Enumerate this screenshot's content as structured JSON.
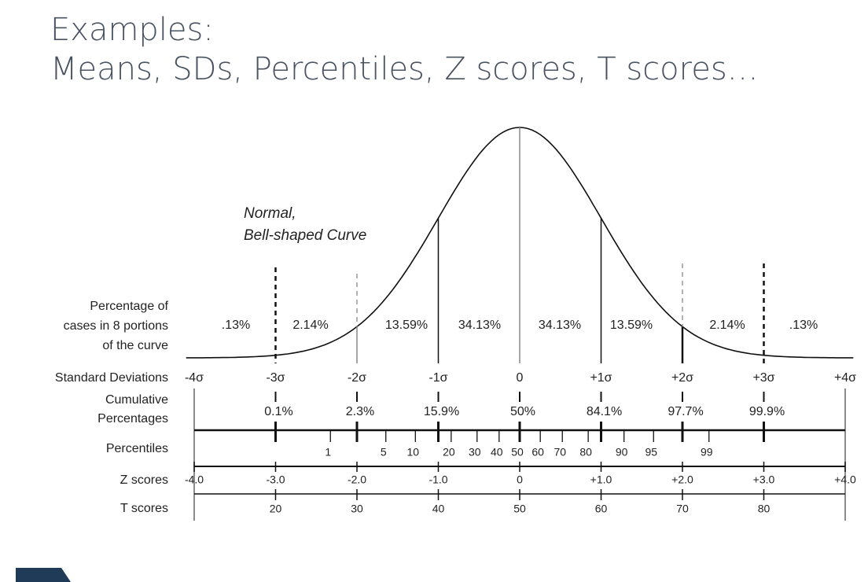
{
  "title": {
    "line1": "Examples:",
    "line2": "Means, SDs, Percentiles, Z scores, T scores…"
  },
  "annotation": [
    "Normal,",
    "Bell-shaped Curve"
  ],
  "rows": {
    "portions": {
      "label": [
        "Percentage of",
        "cases in 8 portions",
        "of the curve"
      ],
      "values": [
        ".13%",
        "2.14%",
        "13.59%",
        "34.13%",
        "34.13%",
        "13.59%",
        "2.14%",
        ".13%"
      ]
    },
    "standard_deviations": {
      "label": "Standard Deviations",
      "values": [
        "-4σ",
        "-3σ",
        "-2σ",
        "-1σ",
        "0",
        "+1σ",
        "+2σ",
        "+3σ",
        "+4σ"
      ]
    },
    "cumulative": {
      "label": [
        "Cumulative",
        "Percentages"
      ],
      "values": [
        "0.1%",
        "2.3%",
        "15.9%",
        "50%",
        "84.1%",
        "97.7%",
        "99.9%"
      ]
    },
    "percentiles": {
      "label": "Percentiles",
      "values": [
        "1",
        "5",
        "10",
        "20",
        "30",
        "40",
        "50",
        "60",
        "70",
        "80",
        "90",
        "95",
        "99"
      ]
    },
    "z_scores": {
      "label": "Z scores",
      "values": [
        "-4.0",
        "-3.0",
        "-2.0",
        "-1.0",
        "0",
        "+1.0",
        "+2.0",
        "+3.0",
        "+4.0"
      ]
    },
    "t_scores": {
      "label": "T scores",
      "values": [
        "20",
        "30",
        "40",
        "50",
        "60",
        "70",
        "80"
      ]
    }
  }
}
